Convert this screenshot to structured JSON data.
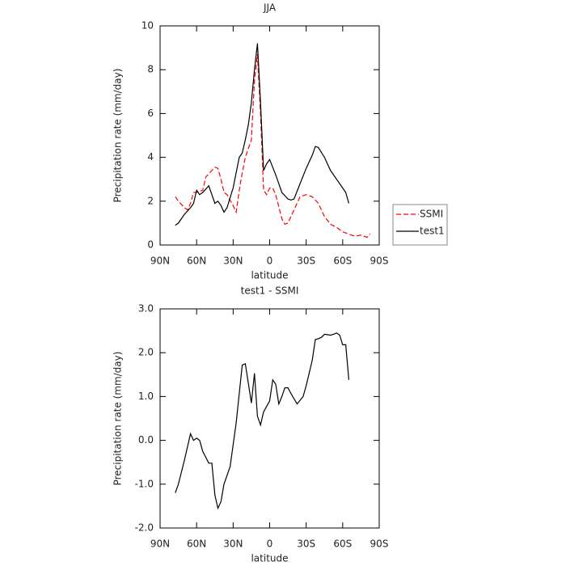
{
  "chart_data": [
    {
      "type": "line",
      "title": "JJA",
      "xlabel": "latitude",
      "ylabel": "Precipitation rate (mm/day)",
      "xlim": [
        90,
        -90
      ],
      "xticks": [
        {
          "value": 90,
          "label": "90N"
        },
        {
          "value": 60,
          "label": "60N"
        },
        {
          "value": 30,
          "label": "30N"
        },
        0,
        {
          "value": -30,
          "label": "30S"
        },
        {
          "value": -60,
          "label": "60S"
        },
        {
          "value": -90,
          "label": "90S"
        }
      ],
      "ylim": [
        0,
        10
      ],
      "yticks": [
        0,
        2,
        4,
        6,
        8,
        10
      ],
      "legend": "right",
      "series": [
        {
          "name": "SSMI",
          "color": "#ff0000",
          "dash": "dashed",
          "x": [
            77.5,
            75,
            70,
            67.5,
            65,
            62.5,
            60,
            55,
            52.5,
            47.5,
            45,
            42.5,
            40,
            37.5,
            35,
            30,
            27.5,
            25,
            22.5,
            20,
            15,
            12.5,
            10,
            7.5,
            5,
            2.5,
            0,
            -2.5,
            -5,
            -10,
            -12.5,
            -15,
            -20,
            -25,
            -30,
            -35,
            -40,
            -45,
            -50,
            -55,
            -60,
            -65,
            -70,
            -75,
            -80,
            -82.5
          ],
          "values": [
            2.2,
            2.0,
            1.7,
            1.6,
            1.9,
            2.4,
            2.4,
            2.5,
            3.1,
            3.4,
            3.55,
            3.5,
            3.0,
            2.4,
            2.3,
            1.8,
            1.5,
            2.5,
            3.3,
            4.0,
            4.8,
            7.5,
            8.7,
            6.0,
            2.5,
            2.3,
            2.6,
            2.6,
            2.3,
            1.2,
            0.95,
            1.0,
            1.6,
            2.2,
            2.3,
            2.2,
            1.9,
            1.3,
            0.95,
            0.8,
            0.6,
            0.5,
            0.4,
            0.45,
            0.35,
            0.5
          ]
        },
        {
          "name": "test1",
          "color": "#000000",
          "dash": "solid",
          "x": [
            77.5,
            75,
            70,
            65,
            62.5,
            60,
            57.5,
            55,
            50,
            47.5,
            45,
            42.5,
            40,
            37.5,
            35,
            30,
            25,
            22.5,
            20,
            17.5,
            15,
            12.5,
            10,
            7.5,
            5,
            2.5,
            0,
            -5,
            -10,
            -15,
            -17.5,
            -20,
            -25,
            -30,
            -35,
            -37.5,
            -40,
            -45,
            -50,
            -55,
            -60,
            -62.5,
            -65
          ],
          "values": [
            0.9,
            1.0,
            1.4,
            1.7,
            1.9,
            2.5,
            2.3,
            2.4,
            2.7,
            2.3,
            1.9,
            2.0,
            1.8,
            1.5,
            1.7,
            2.6,
            4.0,
            4.2,
            4.8,
            5.5,
            6.5,
            8.0,
            9.2,
            6.5,
            3.4,
            3.7,
            3.9,
            3.2,
            2.4,
            2.1,
            2.05,
            2.1,
            2.8,
            3.5,
            4.1,
            4.5,
            4.45,
            4.0,
            3.4,
            3.0,
            2.6,
            2.4,
            1.9
          ]
        }
      ]
    },
    {
      "type": "line",
      "title": "test1 - SSMI",
      "xlabel": "latitude",
      "ylabel": "Precipitation rate (mm/day)",
      "xlim": [
        90,
        -90
      ],
      "xticks": [
        {
          "value": 90,
          "label": "90N"
        },
        {
          "value": 60,
          "label": "60N"
        },
        {
          "value": 30,
          "label": "30N"
        },
        0,
        {
          "value": -30,
          "label": "30S"
        },
        {
          "value": -60,
          "label": "60S"
        },
        {
          "value": -90,
          "label": "90S"
        }
      ],
      "ylim": [
        -2,
        3
      ],
      "yticks": [
        {
          "value": -2,
          "label": "-2.0"
        },
        {
          "value": -1,
          "label": "-1.0"
        },
        {
          "value": 0,
          "label": "0.0"
        },
        {
          "value": 1,
          "label": "1.0"
        },
        {
          "value": 2,
          "label": "2.0"
        },
        {
          "value": 3,
          "label": "3.0"
        }
      ],
      "series": [
        {
          "color": "#000000",
          "dash": "solid",
          "x": [
            77.5,
            75,
            70,
            65,
            62.5,
            60,
            57.5,
            55,
            50,
            47.5,
            45,
            42.5,
            40,
            37.5,
            32.5,
            27.5,
            22.5,
            20,
            15,
            12.5,
            10,
            7.5,
            5,
            0,
            -2.5,
            -5,
            -7.5,
            -10,
            -12.5,
            -15,
            -17.5,
            -22.5,
            -27.5,
            -30,
            -35,
            -37.5,
            -40,
            -42.5,
            -45,
            -50,
            -52.5,
            -55,
            -57.5,
            -60,
            -62.5,
            -65
          ],
          "values": [
            -1.2,
            -1.0,
            -0.45,
            0.15,
            0.0,
            0.05,
            0.0,
            -0.25,
            -0.52,
            -0.52,
            -1.25,
            -1.55,
            -1.4,
            -1.0,
            -0.6,
            0.4,
            1.72,
            1.75,
            0.85,
            1.53,
            0.55,
            0.35,
            0.65,
            0.9,
            1.38,
            1.28,
            0.83,
            1.0,
            1.2,
            1.2,
            1.07,
            0.83,
            1.0,
            1.25,
            1.83,
            2.3,
            2.32,
            2.35,
            2.42,
            2.4,
            2.42,
            2.45,
            2.4,
            2.18,
            2.18,
            1.38
          ]
        }
      ]
    }
  ]
}
